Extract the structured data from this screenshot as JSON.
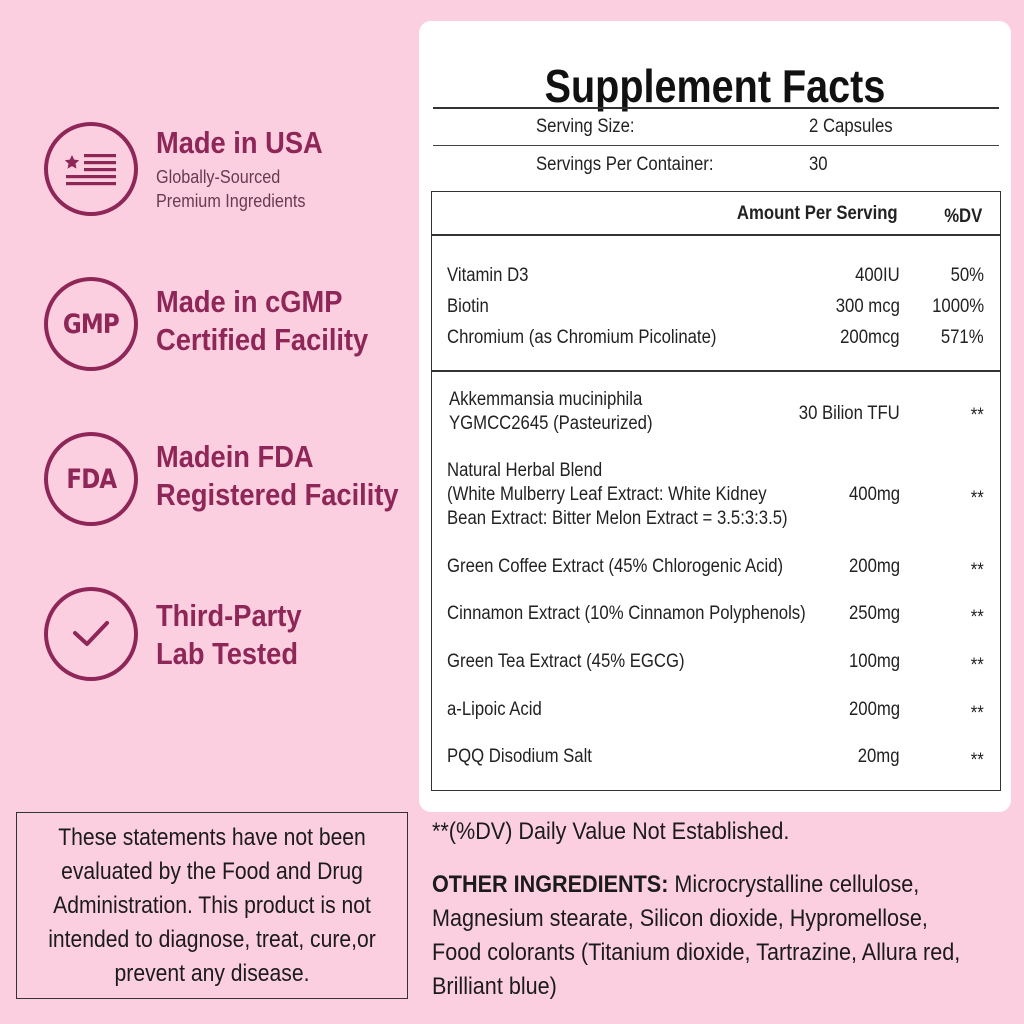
{
  "badges": [
    {
      "icon": "flag-icon",
      "title": [
        "Made in USA"
      ],
      "sub": [
        "Globally-Sourced",
        "Premium Ingredients"
      ]
    },
    {
      "icon_text": "GMP",
      "title": [
        "Made in cGMP",
        "Certified Facility"
      ]
    },
    {
      "icon_text": "FDA",
      "title": [
        "Madein FDA",
        "Registered Facility"
      ]
    },
    {
      "icon": "checkmark-icon",
      "title": [
        "Third-Party",
        "Lab Tested"
      ]
    }
  ],
  "facts": {
    "title": "Supplement Facts",
    "serving_size_label": "Serving Size:",
    "serving_size_value": "2 Capsules",
    "servings_label": "Servings Per Container:",
    "servings_value": "30",
    "header_amount": "Amount Per Serving",
    "header_dv": "%DV",
    "vitamins": [
      {
        "name": "Vitamin D3",
        "amount": "400IU",
        "dv": "50%"
      },
      {
        "name": "Biotin",
        "amount": "300 mcg",
        "dv": "1000%"
      },
      {
        "name": "Chromium (as Chromium Picolinate)",
        "amount": "200mcg",
        "dv": "571%"
      }
    ],
    "blend": [
      {
        "name": [
          "Akkemmansia muciniphila",
          "YGMCC2645 (Pasteurized)"
        ],
        "amount": "30 Bilion TFU",
        "dv": "**"
      },
      {
        "name": [
          "Natural Herbal Blend",
          "(White Mulberry Leaf Extract: White Kidney",
          "Bean Extract: Bitter Melon Extract = 3.5:3:3.5)"
        ],
        "amount": "400mg",
        "dv": "**"
      },
      {
        "name": [
          "Green Coffee Extract (45% Chlorogenic Acid)"
        ],
        "amount": "200mg",
        "dv": "**"
      },
      {
        "name": [
          "Cinnamon Extract (10% Cinnamon Polyphenols)"
        ],
        "amount": "250mg",
        "dv": "**"
      },
      {
        "name": [
          "Green Tea Extract (45% EGCG)"
        ],
        "amount": "100mg",
        "dv": "**"
      },
      {
        "name": [
          "a-Lipoic Acid"
        ],
        "amount": "200mg",
        "dv": "**"
      },
      {
        "name": [
          "PQQ Disodium Salt"
        ],
        "amount": "20mg",
        "dv": "**"
      }
    ]
  },
  "disclaimer": "These statements have not been evaluated by the Food and Drug Administration. This product is not intended to diagnose, treat, cure,or prevent any disease.",
  "dv_note": "**(%DV) Daily Value Not Established.",
  "other_label": "OTHER INGREDIENTS:",
  "other_text": " Microcrystalline cellulose, Magnesium stearate, Silicon dioxide, Hypromellose, Food colorants (Titanium dioxide, Tartrazine, Allura red, Brilliant blue)",
  "colors": {
    "background": "#fccfe0",
    "accent": "#8e2658"
  }
}
